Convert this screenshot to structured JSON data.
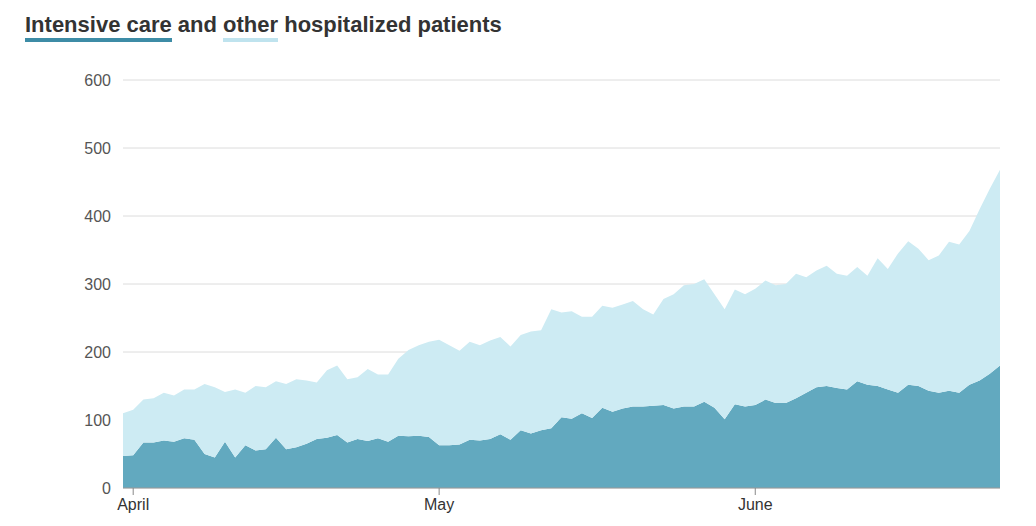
{
  "chart_data": {
    "type": "area",
    "title": "Intensive care and other hospitalized patients",
    "stacked": true,
    "grid": true,
    "categories": [
      null,
      "April",
      null,
      null,
      null,
      null,
      null,
      null,
      null,
      null,
      null,
      null,
      null,
      null,
      null,
      null,
      null,
      null,
      null,
      null,
      null,
      null,
      null,
      null,
      null,
      null,
      null,
      null,
      null,
      null,
      null,
      "May",
      null,
      null,
      null,
      null,
      null,
      null,
      null,
      null,
      null,
      null,
      null,
      null,
      null,
      null,
      null,
      null,
      null,
      null,
      null,
      null,
      null,
      null,
      null,
      null,
      null,
      null,
      null,
      null,
      null,
      null,
      "June",
      null,
      null,
      null,
      null,
      null,
      null,
      null,
      null,
      null,
      null,
      null,
      null,
      null,
      null,
      null,
      null,
      null,
      null,
      null,
      null,
      null,
      null,
      null,
      null
    ],
    "series": [
      {
        "name": "Intensive care",
        "color": "#62a9bf",
        "values": [
          47,
          48,
          67,
          67,
          70,
          68,
          73,
          71,
          50,
          45,
          68,
          45,
          63,
          55,
          57,
          74,
          57,
          60,
          65,
          72,
          74,
          78,
          67,
          72,
          69,
          73,
          68,
          77,
          76,
          77,
          75,
          63,
          63,
          64,
          71,
          70,
          72,
          79,
          71,
          85,
          80,
          85,
          88,
          104,
          102,
          110,
          103,
          118,
          112,
          117,
          120,
          120,
          121,
          122,
          117,
          120,
          120,
          127,
          118,
          101,
          123,
          120,
          122,
          130,
          125,
          125,
          132,
          140,
          148,
          150,
          147,
          145,
          157,
          152,
          150,
          145,
          140,
          152,
          150,
          143,
          140,
          143,
          140,
          152,
          158,
          168,
          180
        ]
      },
      {
        "name": "other",
        "color": "#cdebf3",
        "values": [
          63,
          67,
          63,
          65,
          70,
          68,
          72,
          74,
          103,
          103,
          73,
          100,
          77,
          95,
          91,
          83,
          96,
          100,
          93,
          83,
          99,
          102,
          93,
          91,
          106,
          94,
          99,
          113,
          127,
          133,
          140,
          155,
          147,
          138,
          144,
          140,
          145,
          143,
          137,
          140,
          150,
          147,
          175,
          154,
          158,
          142,
          149,
          150,
          153,
          153,
          155,
          143,
          134,
          156,
          168,
          178,
          180,
          180,
          167,
          162,
          169,
          165,
          171,
          175,
          173,
          175,
          183,
          170,
          172,
          177,
          168,
          167,
          168,
          160,
          188,
          177,
          205,
          211,
          202,
          192,
          202,
          219,
          218,
          226,
          252,
          272,
          288
        ]
      }
    ],
    "ylim": [
      0,
      600
    ],
    "yticks": [
      0,
      100,
      200,
      300,
      400,
      500,
      600
    ]
  }
}
